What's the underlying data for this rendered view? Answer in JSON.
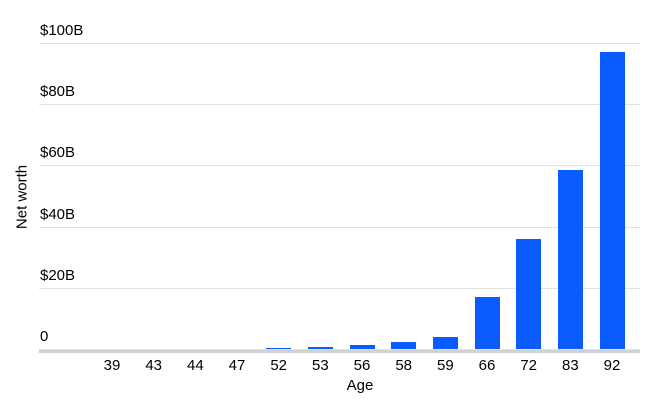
{
  "chart_data": {
    "type": "bar",
    "title": "",
    "xlabel": "Age",
    "ylabel": "Net worth",
    "unit": "billions USD",
    "categories": [
      "39",
      "43",
      "44",
      "47",
      "52",
      "53",
      "56",
      "58",
      "59",
      "66",
      "72",
      "83",
      "92"
    ],
    "values": [
      0.03,
      0.03,
      0.02,
      0.07,
      0.38,
      0.62,
      1.4,
      2.3,
      3.8,
      17,
      36,
      58.5,
      97
    ],
    "ylim": [
      0,
      100
    ],
    "yticks": [
      {
        "value": 0,
        "label": "0"
      },
      {
        "value": 20,
        "label": "$20B"
      },
      {
        "value": 40,
        "label": "$40B"
      },
      {
        "value": 60,
        "label": "$60B"
      },
      {
        "value": 80,
        "label": "$80B"
      },
      {
        "value": 100,
        "label": "$100B"
      }
    ],
    "grid": true,
    "legend": false,
    "colors": {
      "bar": "#0b5cff",
      "gridline": "#e2e2e2",
      "axis_line": "#d2d2d2",
      "text": "#000000",
      "background": "#ffffff"
    }
  }
}
